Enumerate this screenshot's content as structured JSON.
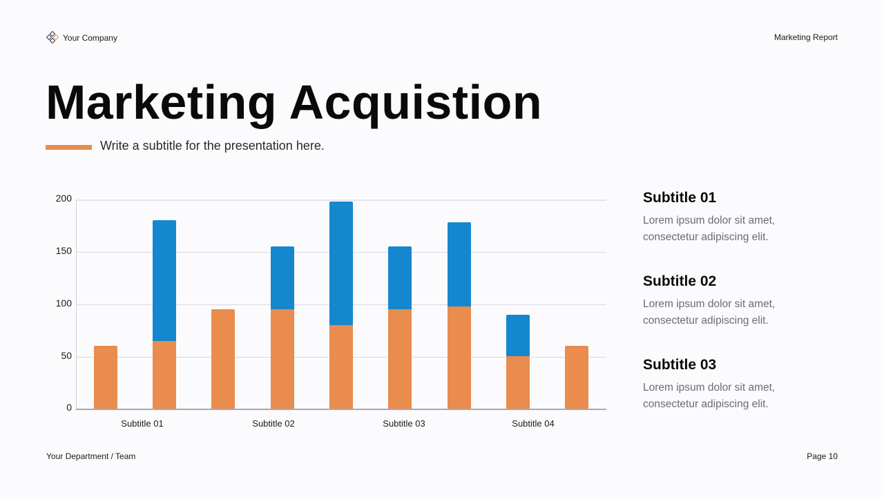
{
  "header": {
    "company": "Your Company",
    "logo_icon": "diamond-grid-logo",
    "report_label": "Marketing Report"
  },
  "title": "Marketing Acquistion",
  "subtitle": "Write a subtitle for the presentation here.",
  "colors": {
    "accent_orange": "#e98c4d",
    "accent_blue": "#1587cf",
    "text_dark": "#0a0a0a",
    "text_muted": "#6b6b72"
  },
  "chart": {
    "yticks": [
      "200",
      "150",
      "100",
      "50",
      "0"
    ],
    "xlabels": [
      "Subtitle 01",
      "Subtitle 02",
      "Subtitle 03",
      "Subtitle 04"
    ]
  },
  "chart_data": {
    "type": "bar",
    "stacked": true,
    "title": "",
    "xlabel": "",
    "ylabel": "",
    "ylim": [
      0,
      200
    ],
    "yticks": [
      0,
      50,
      100,
      150,
      200
    ],
    "grid": true,
    "legend": "none",
    "category_labels": [
      "Subtitle 01",
      "Subtitle 02",
      "Subtitle 03",
      "Subtitle 04"
    ],
    "bars": 9,
    "series": [
      {
        "name": "Series 1 (orange)",
        "color": "#e98c4d",
        "values": [
          60,
          65,
          95,
          95,
          80,
          95,
          98,
          50,
          60
        ]
      },
      {
        "name": "Series 2 (blue)",
        "color": "#1587cf",
        "values": [
          0,
          115,
          0,
          60,
          118,
          60,
          80,
          40,
          0
        ]
      }
    ],
    "totals": [
      60,
      180,
      95,
      155,
      198,
      155,
      178,
      90,
      60
    ]
  },
  "notes": [
    {
      "title": "Subtitle 01",
      "body_line1": "Lorem ipsum dolor sit amet,",
      "body_line2": "consectetur adipiscing elit."
    },
    {
      "title": "Subtitle 02",
      "body_line1": "Lorem ipsum dolor sit amet,",
      "body_line2": "consectetur adipiscing elit."
    },
    {
      "title": "Subtitle 03",
      "body_line1": "Lorem ipsum dolor sit amet,",
      "body_line2": "consectetur adipiscing elit."
    }
  ],
  "footer": {
    "department": "Your Department / Team",
    "page": "Page 10"
  }
}
